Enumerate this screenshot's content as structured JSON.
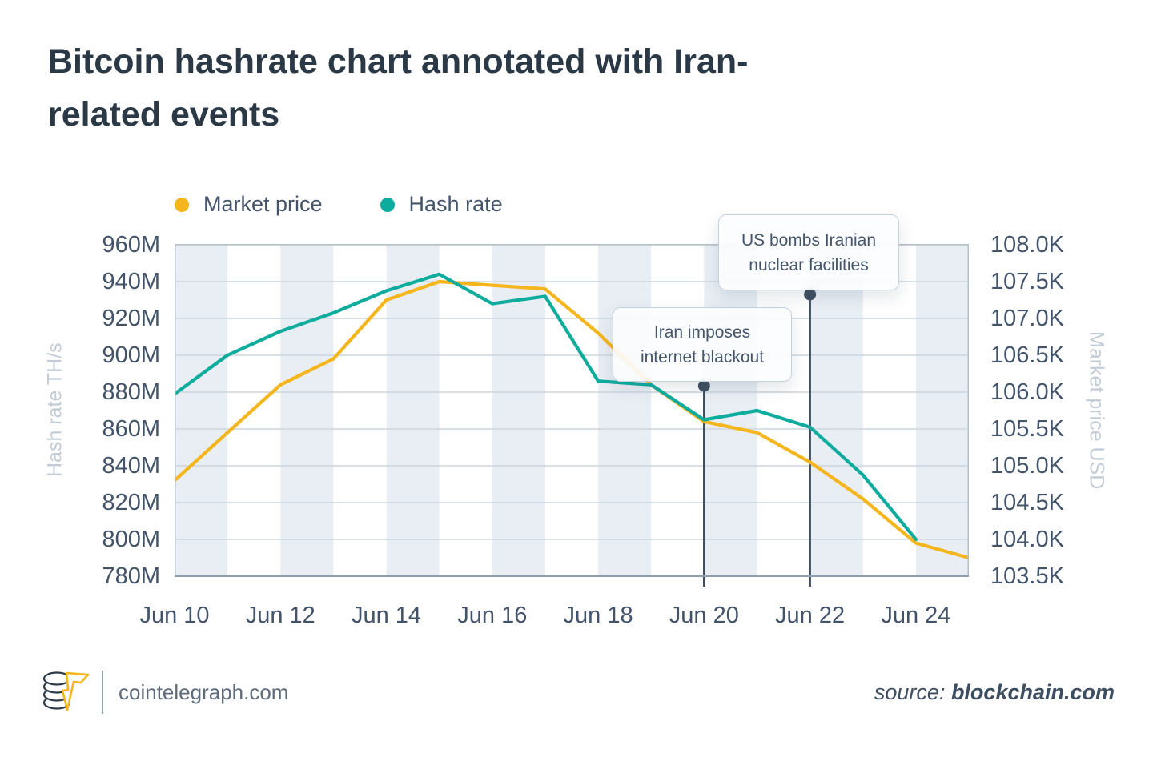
{
  "title": "Bitcoin hashrate chart annotated with Iran-related events",
  "legend": [
    {
      "label": "Market price",
      "color": "#F5B51C"
    },
    {
      "label": "Hash rate",
      "color": "#0EAC9D"
    }
  ],
  "chart_data": {
    "type": "line",
    "title": "Bitcoin hashrate chart annotated with Iran-related events",
    "x_axis": {
      "tick_labels": [
        "Jun 10",
        "Jun 12",
        "Jun 14",
        "Jun 16",
        "Jun 18",
        "Jun 20",
        "Jun 22",
        "Jun 24"
      ],
      "tick_days": [
        10,
        12,
        14,
        16,
        18,
        20,
        22,
        24
      ],
      "range_days": [
        10,
        25
      ],
      "striped_bands_start_days": [
        10,
        12,
        14,
        16,
        18,
        20,
        22,
        24
      ]
    },
    "left_axis": {
      "label": "Hash rate TH/s",
      "tick_labels": [
        "960M",
        "940M",
        "920M",
        "900M",
        "880M",
        "860M",
        "840M",
        "820M",
        "800M",
        "780M"
      ],
      "min": 780,
      "max": 960,
      "step": 20,
      "unit": "M TH/s"
    },
    "right_axis": {
      "label": "Market price USD",
      "tick_labels": [
        "108.0K",
        "107.5K",
        "107.0K",
        "106.5K",
        "106.0K",
        "105.5K",
        "105.0K",
        "104.5K",
        "104.0K",
        "103.5K"
      ],
      "min": 103.5,
      "max": 108.0,
      "step": 0.5,
      "unit": "K USD"
    },
    "series": [
      {
        "name": "Market price",
        "axis": "right",
        "color": "#F5B51C",
        "unit": "K USD",
        "days": [
          10,
          11,
          12,
          13,
          14,
          15,
          16,
          17,
          18,
          19,
          20,
          21,
          22,
          23,
          24,
          25
        ],
        "values": [
          104.8,
          105.45,
          106.1,
          106.45,
          107.25,
          107.5,
          107.45,
          107.4,
          106.8,
          106.1,
          105.6,
          105.45,
          105.05,
          104.55,
          103.95,
          103.75
        ]
      },
      {
        "name": "Hash rate",
        "axis": "left",
        "color": "#0EAC9D",
        "unit": "M TH/s",
        "days": [
          10,
          11,
          12,
          13,
          14,
          15,
          16,
          17,
          18,
          19,
          20,
          21,
          22,
          23,
          24
        ],
        "values": [
          879,
          900,
          913,
          923,
          935,
          944,
          928,
          932,
          886,
          884,
          865,
          870,
          861,
          835,
          800
        ]
      }
    ],
    "annotations": [
      {
        "text": "Iran imposes internet blackout",
        "day": 20
      },
      {
        "text": "US bombs Iranian nuclear facilities",
        "day": 22
      }
    ],
    "grid": "horizontal-on, vertical-stripes",
    "legend_position": "top-left"
  },
  "footer": {
    "site": "cointelegraph.com",
    "source_label": "source:",
    "source_value": "blockchain.com"
  },
  "colors": {
    "market_price": "#F5B51C",
    "hash_rate": "#0EAC9D",
    "stripe": "#e9eef4",
    "gridline": "#ccd6de",
    "plot_border": "#b3c0ca",
    "bottom_axis": "#8e9eac",
    "annotation_line": "#3d4d5e",
    "text_dark": "#2b3947",
    "text_slate": "#44546a",
    "text_axis_title": "#c3ccd6"
  }
}
